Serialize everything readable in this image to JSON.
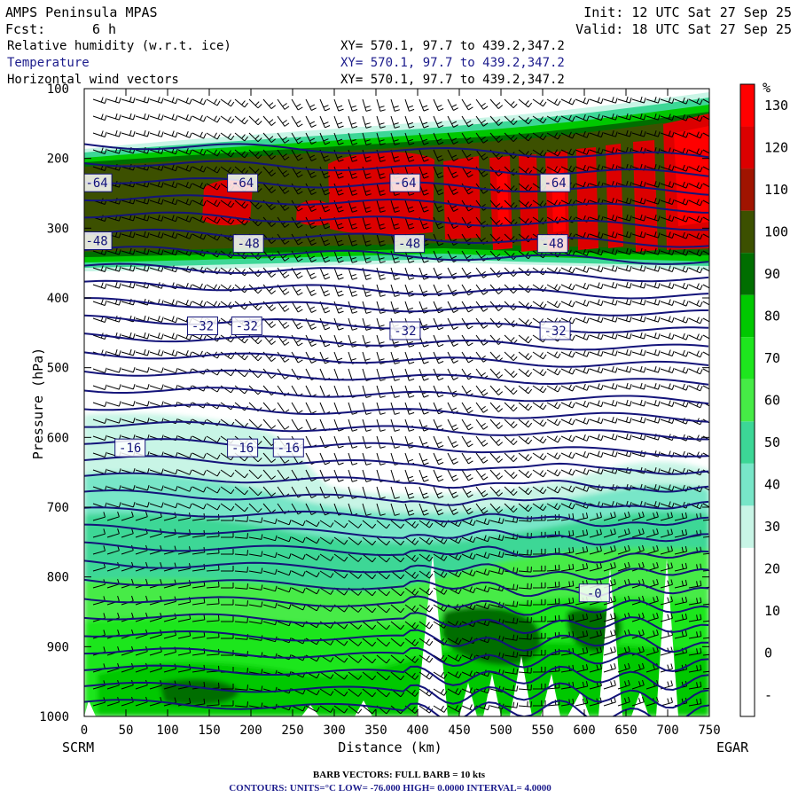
{
  "header": {
    "model": "AMPS Peninsula MPAS",
    "init": "Init: 12 UTC Sat 27 Sep 25",
    "fcst_label": "Fcst:",
    "fcst_value": "6 h",
    "valid": "Valid: 18 UTC Sat 27 Sep 25",
    "fields": [
      {
        "name": "Relative humidity (w.r.t. ice)",
        "xy": "XY= 570.1, 97.7 to 439.2,347.2",
        "color": "#000000"
      },
      {
        "name": "Temperature",
        "xy": "XY= 570.1, 97.7 to 439.2,347.2",
        "color": "#1c1c8c"
      },
      {
        "name": "Horizontal wind vectors",
        "xy": "XY= 570.1, 97.7 to 439.2,347.2",
        "color": "#000000"
      }
    ]
  },
  "footer": {
    "barb": "BARB VECTORS:  FULL BARB = 10 kts",
    "contours": "CONTOURS:  UNITS=°C  LOW= -76.000      HIGH=  0.0000      INTERVAL=   4.0000"
  },
  "chart_data": {
    "type": "heatmap",
    "xlabel": "Distance (km)",
    "ylabel": "Pressure (hPa)",
    "xlim": [
      0,
      750
    ],
    "ylim": [
      1000,
      100
    ],
    "x_ticks": [
      "0",
      "50",
      "100",
      "150",
      "200",
      "250",
      "300",
      "350",
      "400",
      "450",
      "500",
      "550",
      "600",
      "650",
      "700",
      "750"
    ],
    "y_ticks": [
      "100",
      "200",
      "300",
      "400",
      "500",
      "600",
      "700",
      "800",
      "900",
      "1000"
    ],
    "endpoints": {
      "left": "SCRM",
      "right": "EGAR"
    },
    "colorbar": {
      "unit": "%",
      "labels": [
        "-",
        "0",
        "10",
        "20",
        "30",
        "40",
        "50",
        "60",
        "70",
        "80",
        "90",
        "100",
        "110",
        "120",
        "130"
      ],
      "colors": [
        "#ffffff",
        "#ffffff",
        "#ffffff",
        "#ffffff",
        "#c8f5e6",
        "#78e6c8",
        "#3cd796",
        "#46eb46",
        "#1ee61e",
        "#00c800",
        "#006e00",
        "#3c5000",
        "#a01400",
        "#dc0000",
        "#ff0000"
      ]
    },
    "temperature_labels": [
      {
        "text": "-64",
        "x": 15,
        "p": 235
      },
      {
        "text": "-64",
        "x": 190,
        "p": 235
      },
      {
        "text": "-64",
        "x": 385,
        "p": 235
      },
      {
        "text": "-64",
        "x": 565,
        "p": 235
      },
      {
        "text": "-48",
        "x": 15,
        "p": 318
      },
      {
        "text": "-48",
        "x": 197,
        "p": 322
      },
      {
        "text": "-48",
        "x": 390,
        "p": 322
      },
      {
        "text": "-48",
        "x": 562,
        "p": 322
      },
      {
        "text": "-32",
        "x": 142,
        "p": 440
      },
      {
        "text": "-32",
        "x": 195,
        "p": 440
      },
      {
        "text": "-32",
        "x": 385,
        "p": 447
      },
      {
        "text": "-32",
        "x": 565,
        "p": 447
      },
      {
        "text": "-16",
        "x": 55,
        "p": 615
      },
      {
        "text": "-16",
        "x": 190,
        "p": 615
      },
      {
        "text": "-16",
        "x": 245,
        "p": 615
      },
      {
        "text": "-0",
        "x": 612,
        "p": 823
      }
    ]
  }
}
